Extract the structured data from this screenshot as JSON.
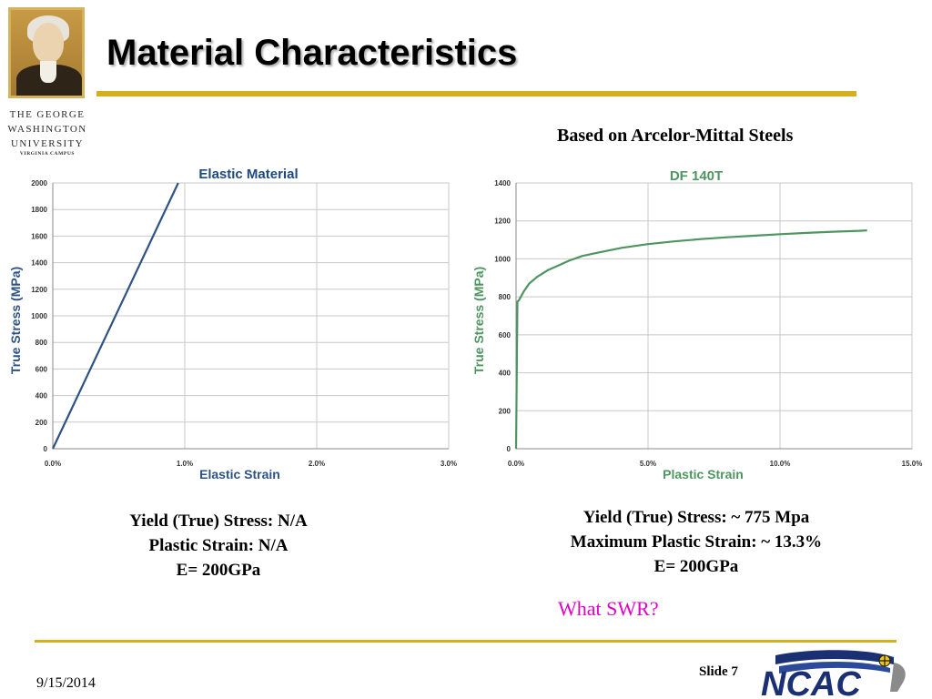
{
  "slide": {
    "title": "Material Characteristics",
    "note_top": "Based on Arcelor-Mittal Steels",
    "left_caption": [
      "Yield (True) Stress: N/A",
      "Plastic Strain: N/A",
      "E= 200GPa"
    ],
    "right_caption": [
      "Yield (True) Stress: ~ 775 Mpa",
      "Maximum Plastic Strain: ~ 13.3%",
      "E= 200GPa"
    ],
    "question": "What SWR?",
    "date": "9/15/2014",
    "slide_number": "Slide 7"
  },
  "logo": {
    "university_lines": [
      "THE GEORGE",
      "WASHINGTON",
      "UNIVERSITY",
      "VIRGINIA CAMPUS"
    ]
  },
  "ncac_logo": {
    "text": "NCAC"
  },
  "colors": {
    "rule_gold": "#d4b11c",
    "elastic_series": "#2e5285",
    "plastic_series": "#4e9560",
    "question": "#e000c8"
  },
  "chart_data": [
    {
      "type": "line",
      "title": "Elastic Material",
      "xlabel": "Elastic Strain",
      "ylabel": "True Stress (MPa)",
      "xlim": [
        0,
        0.03
      ],
      "ylim": [
        0,
        2000
      ],
      "x_ticks": [
        "0.0%",
        "1.0%",
        "2.0%",
        "3.0%"
      ],
      "y_ticks": [
        "0",
        "200",
        "400",
        "600",
        "800",
        "1000",
        "1200",
        "1400",
        "1600",
        "1800",
        "2000"
      ],
      "x_tick_values": [
        0,
        0.01,
        0.02,
        0.03
      ],
      "y_tick_values": [
        0,
        200,
        400,
        600,
        800,
        1000,
        1200,
        1400,
        1600,
        1800,
        2000
      ],
      "grid": true,
      "color": "#2e5285",
      "series": [
        {
          "x": [
            0,
            0.0095
          ],
          "y": [
            0,
            2000
          ]
        }
      ]
    },
    {
      "type": "line",
      "title": "DF 140T",
      "xlabel": "Plastic Strain",
      "ylabel": "True Stress (MPa)",
      "xlim": [
        0,
        0.15
      ],
      "ylim": [
        0,
        1400
      ],
      "x_ticks": [
        "0.0%",
        "5.0%",
        "10.0%",
        "15.0%"
      ],
      "y_ticks": [
        "0",
        "200",
        "400",
        "600",
        "800",
        "1000",
        "1200",
        "1400"
      ],
      "x_tick_values": [
        0,
        0.05,
        0.1,
        0.15
      ],
      "y_tick_values": [
        0,
        200,
        400,
        600,
        800,
        1000,
        1200,
        1400
      ],
      "grid": true,
      "color": "#4e9560",
      "series": [
        {
          "x": [
            0,
            0.0005,
            0.001,
            0.003,
            0.005,
            0.008,
            0.012,
            0.016,
            0.02,
            0.025,
            0.03,
            0.04,
            0.05,
            0.06,
            0.07,
            0.08,
            0.09,
            0.1,
            0.11,
            0.12,
            0.13,
            0.133
          ],
          "y": [
            0,
            775,
            780,
            830,
            870,
            905,
            940,
            965,
            990,
            1015,
            1030,
            1058,
            1078,
            1092,
            1104,
            1114,
            1122,
            1130,
            1137,
            1143,
            1148,
            1150
          ]
        }
      ]
    }
  ]
}
